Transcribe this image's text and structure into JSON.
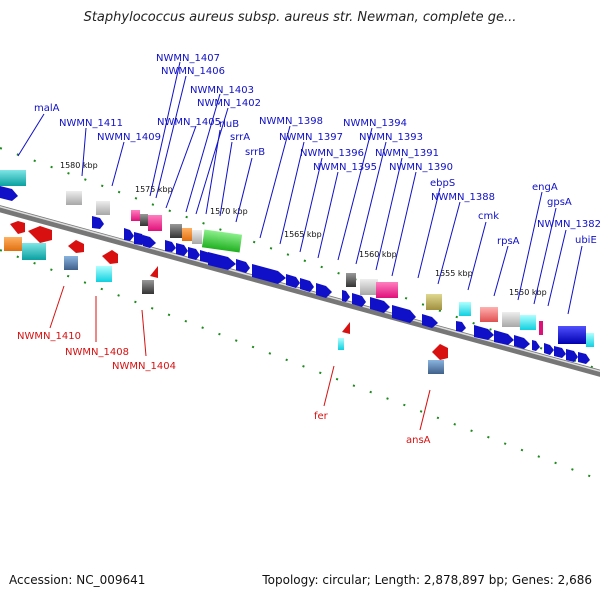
{
  "title": "Staphylococcus aureus subsp. aureus str. Newman, complete ge...",
  "footer": {
    "accession": "Accession: NC_009641",
    "summary": "Topology: circular; Length: 2,878,897 bp; Genes: 2,686"
  },
  "colors": {
    "forward_label": "#1010c8",
    "reverse_label": "#d81010",
    "backbone": "#777777",
    "tick": "#1a8a1a"
  },
  "ticks": [
    "1580 kbp",
    "1575 kbp",
    "1570 kbp",
    "1565 kbp",
    "1560 kbp",
    "1555 kbp",
    "1550 kbp"
  ],
  "forward_labels": [
    "malA",
    "NWMN_1411",
    "NWMN_1409",
    "NWMN_1407",
    "NWMN_1406",
    "NWMN_1405",
    "NWMN_1403",
    "NWMN_1402",
    "rluB",
    "srrA",
    "srrB",
    "NWMN_1398",
    "NWMN_1397",
    "NWMN_1396",
    "NWMN_1395",
    "NWMN_1394",
    "NWMN_1393",
    "NWMN_1391",
    "NWMN_1390",
    "ebpS",
    "NWMN_1388",
    "cmk",
    "rpsA",
    "engA",
    "gpsA",
    "NWMN_1382",
    "ubiE"
  ],
  "reverse_labels": [
    "NWMN_1410",
    "NWMN_1408",
    "NWMN_1404",
    "fer",
    "ansA"
  ]
}
